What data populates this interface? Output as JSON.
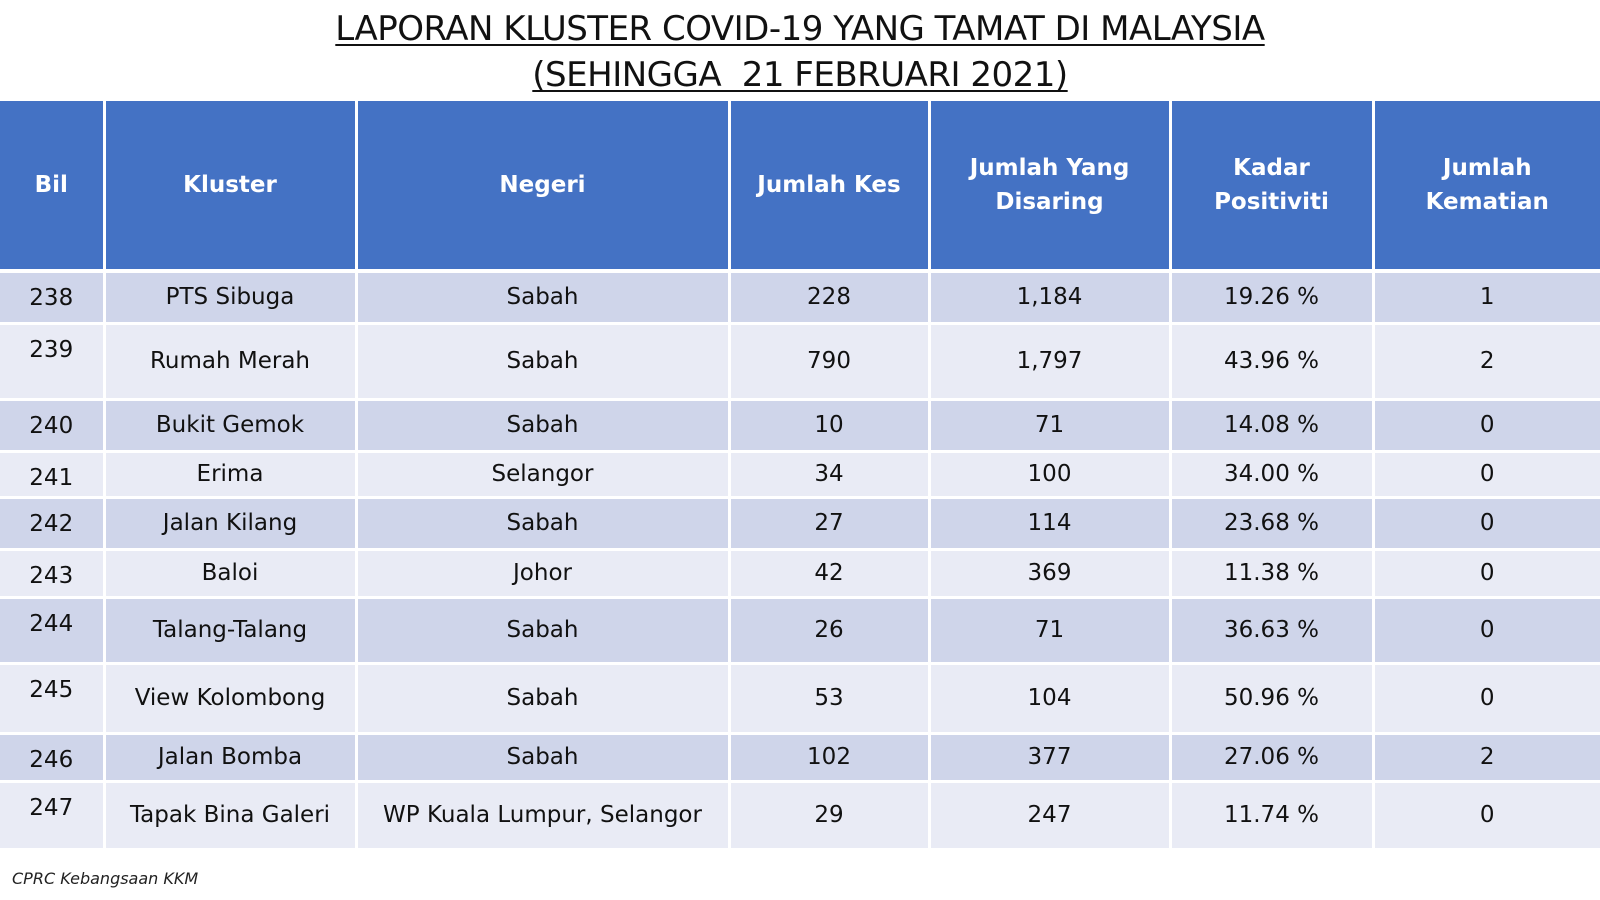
{
  "title": {
    "line1": "LAPORAN KLUSTER COVID-19 YANG TAMAT DI MALAYSIA",
    "line2": "(SEHINGGA  21 FEBRUARI 2021)"
  },
  "table": {
    "headers": {
      "bil": "Bil",
      "kluster": "Kluster",
      "negeri": "Negeri",
      "jumlah_kes": "Jumlah Kes",
      "jumlah_disaring": "Jumlah Yang Disaring",
      "kadar_positiviti": "Kadar Positiviti",
      "jumlah_kematian": "Jumlah Kematian"
    },
    "rows": [
      {
        "bil": "238",
        "kluster": "PTS Sibuga",
        "negeri": "Sabah",
        "kes": "228",
        "disaring": "1,184",
        "positiviti": "19.26 %",
        "kematian": "1"
      },
      {
        "bil": "239",
        "kluster": "Rumah Merah",
        "negeri": "Sabah",
        "kes": "790",
        "disaring": "1,797",
        "positiviti": "43.96 %",
        "kematian": "2"
      },
      {
        "bil": "240",
        "kluster": "Bukit Gemok",
        "negeri": "Sabah",
        "kes": "10",
        "disaring": "71",
        "positiviti": "14.08 %",
        "kematian": "0"
      },
      {
        "bil": "241",
        "kluster": "Erima",
        "negeri": "Selangor",
        "kes": "34",
        "disaring": "100",
        "positiviti": "34.00 %",
        "kematian": "0"
      },
      {
        "bil": "242",
        "kluster": "Jalan Kilang",
        "negeri": "Sabah",
        "kes": "27",
        "disaring": "114",
        "positiviti": "23.68 %",
        "kematian": "0"
      },
      {
        "bil": "243",
        "kluster": "Baloi",
        "negeri": "Johor",
        "kes": "42",
        "disaring": "369",
        "positiviti": "11.38 %",
        "kematian": "0"
      },
      {
        "bil": "244",
        "kluster": "Talang-Talang",
        "negeri": "Sabah",
        "kes": "26",
        "disaring": "71",
        "positiviti": "36.63 %",
        "kematian": "0"
      },
      {
        "bil": "245",
        "kluster": "View Kolombong",
        "negeri": "Sabah",
        "kes": "53",
        "disaring": "104",
        "positiviti": "50.96 %",
        "kematian": "0"
      },
      {
        "bil": "246",
        "kluster": "Jalan Bomba",
        "negeri": "Sabah",
        "kes": "102",
        "disaring": "377",
        "positiviti": "27.06 %",
        "kematian": "2"
      },
      {
        "bil": "247",
        "kluster": "Tapak Bina Galeri",
        "negeri": "WP Kuala Lumpur, Selangor",
        "kes": "29",
        "disaring": "247",
        "positiviti": "11.74 %",
        "kematian": "0"
      }
    ]
  },
  "footer": {
    "source": "CPRC Kebangsaan KKM"
  }
}
